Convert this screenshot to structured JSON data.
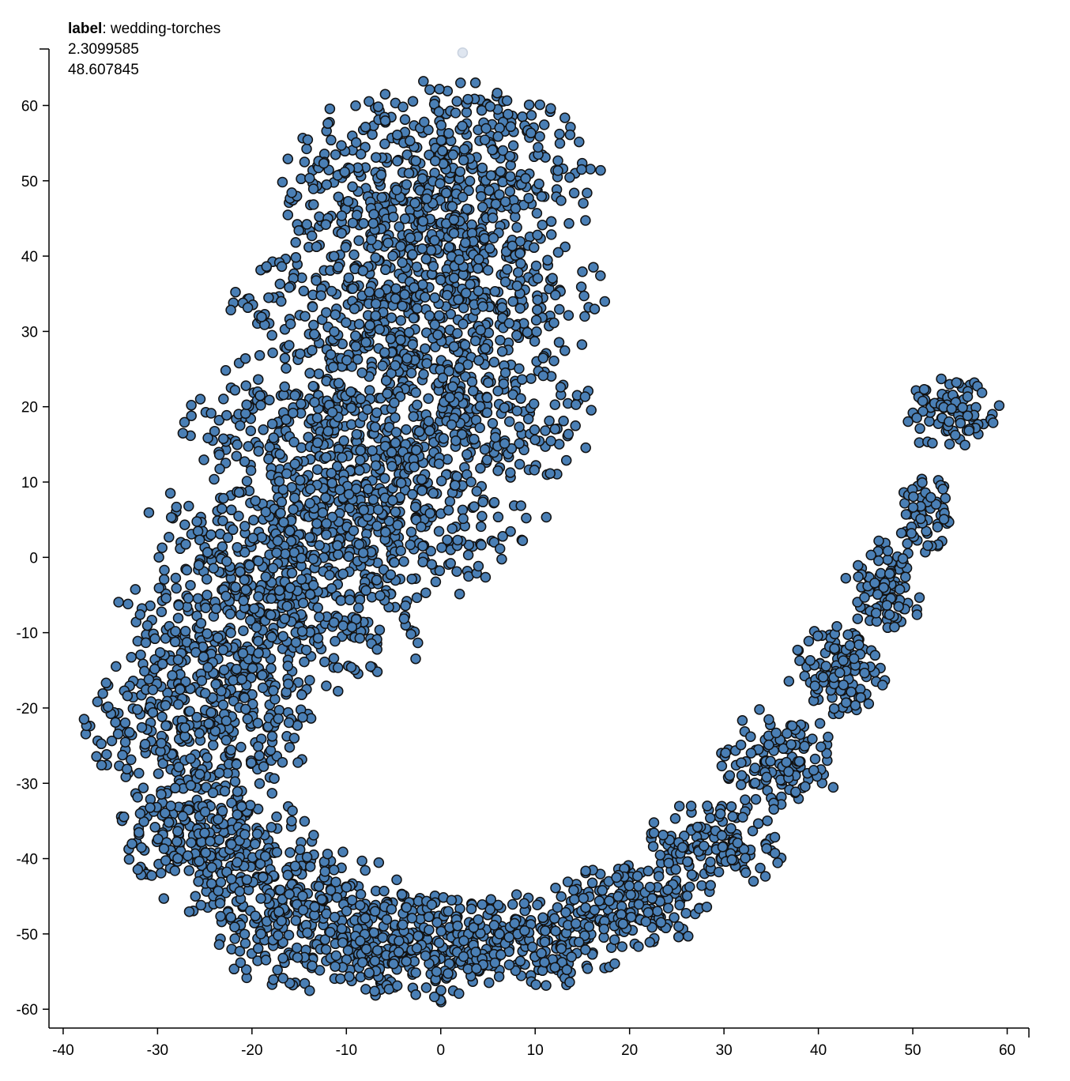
{
  "tooltip": {
    "label_key": "label",
    "label_value": "wedding-torches",
    "x_value": "2.3099585",
    "y_value": "48.607845"
  },
  "colors": {
    "point_fill": "#4a7fb5",
    "point_stroke": "#111111",
    "highlight_fill": "#dfe6f0"
  },
  "chart_data": {
    "type": "scatter",
    "title": "",
    "xlabel": "",
    "ylabel": "",
    "xlim": [
      -41.5,
      62.3
    ],
    "ylim": [
      -62.5,
      67.5
    ],
    "x_ticks": [
      -40,
      -30,
      -20,
      -10,
      0,
      10,
      20,
      30,
      40,
      50,
      60
    ],
    "y_ticks": [
      -60,
      -50,
      -40,
      -30,
      -20,
      -10,
      0,
      10,
      20,
      30,
      40,
      50,
      60
    ],
    "grid": false,
    "legend": "none",
    "highlighted_point": {
      "label": "wedding-torches",
      "x": 2.3099585,
      "y": 48.607845
    },
    "series": [
      {
        "regions": [
          {
            "cx": 0,
            "cy": 50,
            "rx": 16,
            "ry": 13,
            "n": 520
          },
          {
            "cx": -2,
            "cy": 34,
            "rx": 19,
            "ry": 12,
            "n": 560
          },
          {
            "cx": -5,
            "cy": 18,
            "rx": 21,
            "ry": 11,
            "n": 560
          },
          {
            "cx": -10,
            "cy": 4,
            "rx": 20,
            "ry": 10,
            "n": 480
          },
          {
            "cx": -18,
            "cy": -8,
            "rx": 17,
            "ry": 10,
            "n": 380
          },
          {
            "cx": -26,
            "cy": -22,
            "rx": 12,
            "ry": 12,
            "n": 360
          },
          {
            "cx": -24,
            "cy": -38,
            "rx": 10,
            "ry": 9,
            "n": 260
          },
          {
            "cx": -14,
            "cy": -48,
            "rx": 12,
            "ry": 9,
            "n": 300
          },
          {
            "cx": -2,
            "cy": -52,
            "rx": 10,
            "ry": 7,
            "n": 260
          },
          {
            "cx": 10,
            "cy": -51,
            "rx": 9,
            "ry": 6,
            "n": 200
          },
          {
            "cx": 20,
            "cy": -46,
            "rx": 8,
            "ry": 6,
            "n": 170
          },
          {
            "cx": 29,
            "cy": -38,
            "rx": 7,
            "ry": 6,
            "n": 140
          },
          {
            "cx": 36,
            "cy": -27,
            "rx": 6,
            "ry": 7,
            "n": 130
          },
          {
            "cx": 42,
            "cy": -15,
            "rx": 5,
            "ry": 6,
            "n": 110
          },
          {
            "cx": 47,
            "cy": -4,
            "rx": 4,
            "ry": 6,
            "n": 90
          },
          {
            "cx": 51,
            "cy": 6,
            "rx": 3,
            "ry": 5,
            "n": 60
          },
          {
            "cx": 54,
            "cy": 19,
            "rx": 5,
            "ry": 5,
            "n": 90
          }
        ]
      }
    ]
  }
}
